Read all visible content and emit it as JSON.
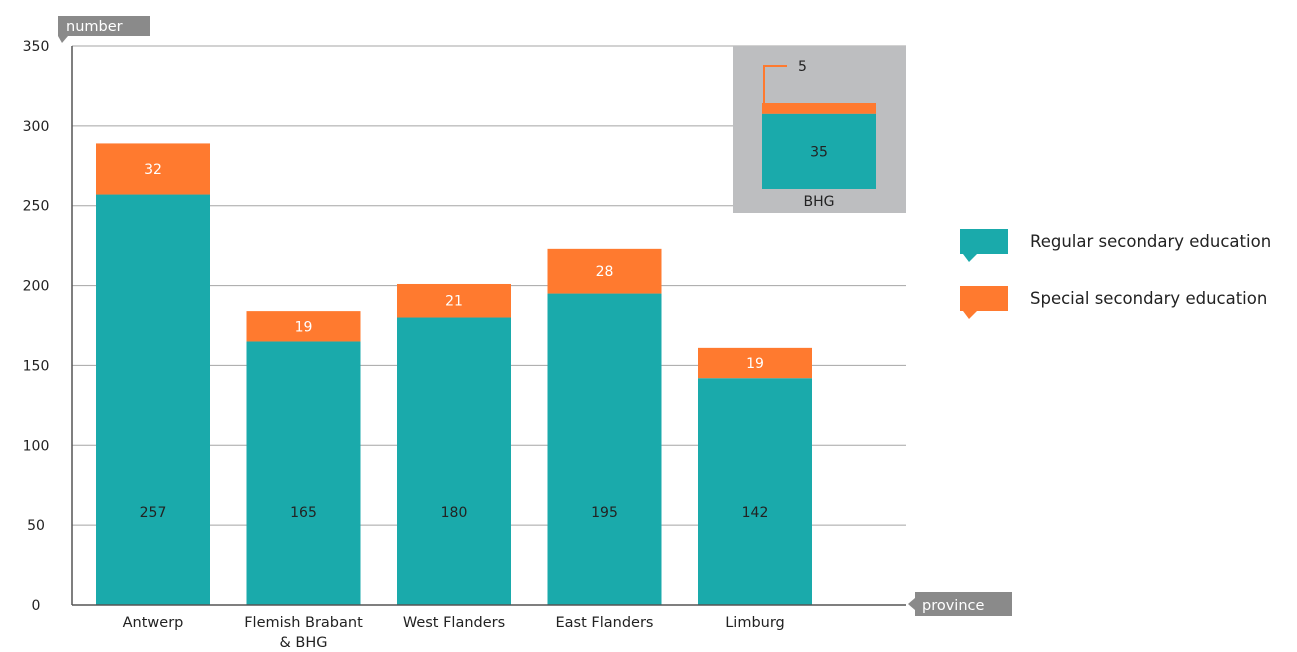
{
  "chart_data": {
    "type": "bar",
    "stacked": true,
    "ylabel": "number",
    "xlabel": "province",
    "ylim": [
      0,
      350
    ],
    "yticks": [
      0,
      50,
      100,
      150,
      200,
      250,
      300,
      350
    ],
    "categories": [
      "Antwerp",
      "Flemish Brabant & BHG",
      "West Flanders",
      "East Flanders",
      "Limburg"
    ],
    "category_lines": [
      [
        "Antwerp"
      ],
      [
        "Flemish Brabant",
        "& BHG"
      ],
      [
        "West Flanders"
      ],
      [
        "East Flanders"
      ],
      [
        "Limburg"
      ]
    ],
    "series": [
      {
        "name": "Regular secondary education",
        "color": "#1aaaab",
        "values": [
          257,
          165,
          180,
          195,
          142
        ]
      },
      {
        "name": "Special secondary education",
        "color": "#ff7a2f",
        "values": [
          32,
          19,
          21,
          28,
          19
        ]
      }
    ],
    "inset": {
      "category": "BHG",
      "values": {
        "regular": 35,
        "special": 5
      },
      "background": "#bdbec0"
    },
    "grid": true,
    "legend_position": "right"
  }
}
